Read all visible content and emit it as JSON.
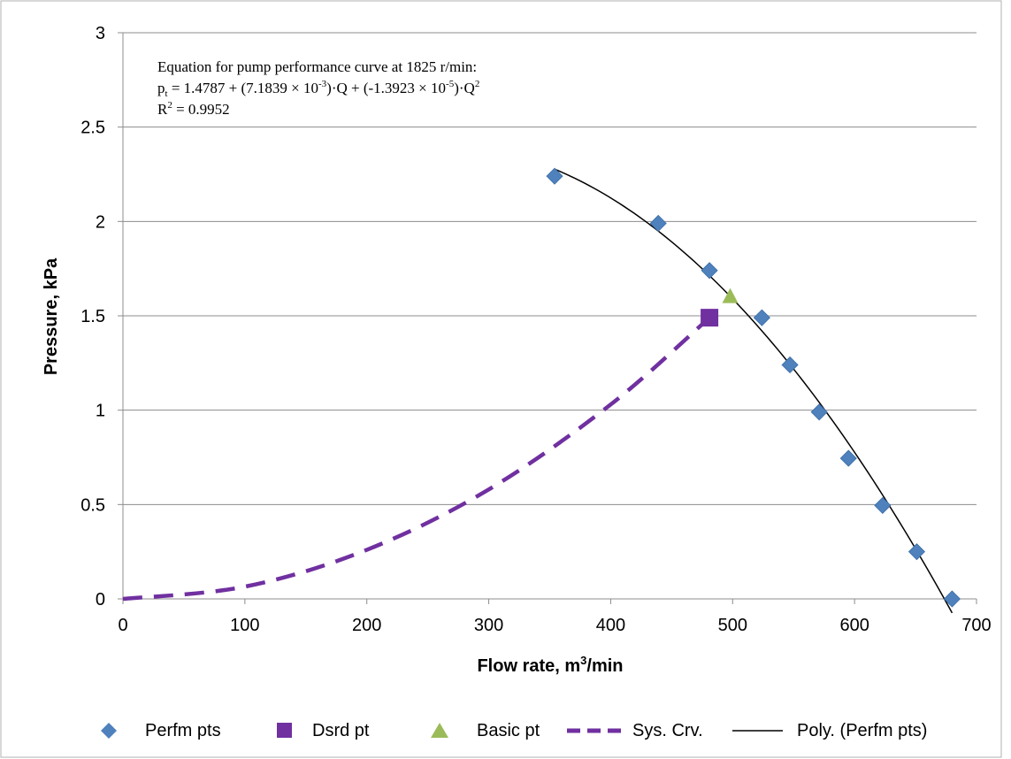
{
  "chart_data": {
    "type": "scatter",
    "title": "",
    "xlabel": "Flow rate, m",
    "xlabel_sup": "3",
    "xlabel_suffix": "/min",
    "ylabel": "Pressure, kPa",
    "xlim": [
      0,
      700
    ],
    "ylim": [
      0,
      3
    ],
    "x_ticks": [
      "0",
      "100",
      "200",
      "300",
      "400",
      "500",
      "600",
      "700"
    ],
    "y_ticks": [
      "0",
      "0.5",
      "1",
      "1.5",
      "2",
      "2.5",
      "3"
    ],
    "grid": "horizontal",
    "legend_position": "bottom",
    "annotation": {
      "line1": "Equation for pump performance curve at 1825 r/min:",
      "line2_a": "p",
      "line2_a_sub": "t",
      "line2_b": " = 1.4787 + (7.1839 × 10",
      "line2_b_sup": "-3",
      "line2_c": ")·Q + (-1.3923 × 10",
      "line2_c_sup": "-5",
      "line2_d": ")·Q",
      "line2_d_sup": "2",
      "line3_a": "R",
      "line3_a_sup": "2",
      "line3_b": " = 0.9952"
    },
    "series": [
      {
        "name": "Perfm pts",
        "kind": "diamond",
        "color": "#4F81BD",
        "x": [
          354,
          439,
          481,
          524,
          547,
          571,
          595,
          623,
          651,
          680
        ],
        "y": [
          2.24,
          1.99,
          1.74,
          1.49,
          1.24,
          0.99,
          0.745,
          0.495,
          0.25,
          0.0
        ]
      },
      {
        "name": "Dsrd pt",
        "kind": "square",
        "color": "#7030A0",
        "x": [
          481
        ],
        "y": [
          1.49
        ]
      },
      {
        "name": "Basic pt",
        "kind": "triangle",
        "color": "#9BBB59",
        "x": [
          498
        ],
        "y": [
          1.6
        ]
      },
      {
        "name": "Sys. Crv.",
        "kind": "dashed-line",
        "color": "#7030A0",
        "x": [
          0,
          100,
          200,
          300,
          400,
          481
        ],
        "y": [
          0,
          0.065,
          0.26,
          0.58,
          1.03,
          1.49
        ]
      },
      {
        "name": "Poly. (Perfm pts)",
        "kind": "trendline",
        "color": "#000000",
        "x_start": 354,
        "x_end": 680,
        "coefficients": [
          1.4787,
          0.0071839,
          -1.3923e-05
        ]
      }
    ]
  }
}
